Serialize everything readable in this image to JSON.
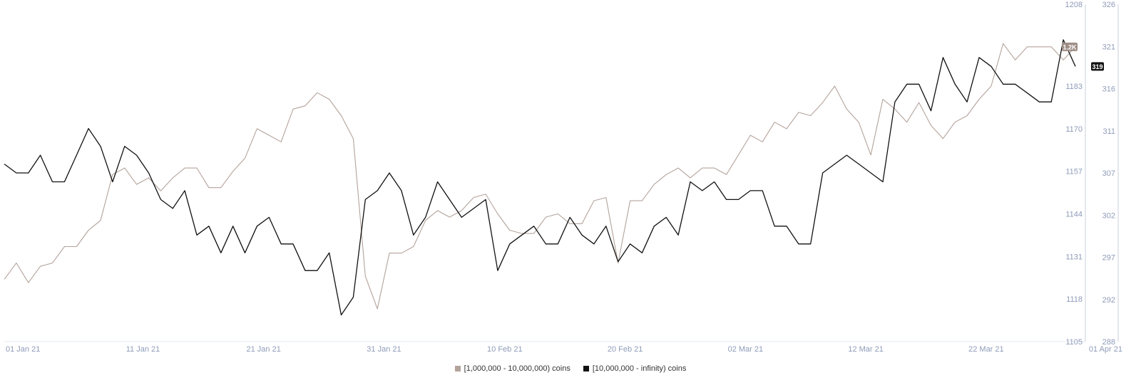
{
  "chart_data": {
    "type": "line",
    "title": "",
    "x_tick_labels": [
      "01 Jan 21",
      "11 Jan 21",
      "21 Jan 21",
      "31 Jan 21",
      "10 Feb 21",
      "20 Feb 21",
      "02 Mar 21",
      "12 Mar 21",
      "22 Mar 21",
      "01 Apr 21"
    ],
    "x_start": "2021-01-01",
    "x_end": "2021-03-31",
    "left_axis": {
      "ticks": [
        "1208",
        "1183",
        "1170",
        "1157",
        "1144",
        "1131",
        "1118",
        "1105"
      ],
      "ylim": [
        1105,
        1208
      ]
    },
    "right_axis": {
      "ticks": [
        "326",
        "321",
        "316",
        "311",
        "307",
        "302",
        "297",
        "292",
        "288"
      ],
      "ylim": [
        288,
        326
      ]
    },
    "series": [
      {
        "name": "[1,000,000 - 10,000,000) coins",
        "axis": "left",
        "color": "#b3a39b",
        "last_label": "1.2K",
        "values": [
          1124,
          1129,
          1123,
          1128,
          1129,
          1134,
          1134,
          1139,
          1142,
          1156,
          1158,
          1153,
          1155,
          1151,
          1155,
          1158,
          1158,
          1152,
          1152,
          1157,
          1161,
          1170,
          1168,
          1166,
          1176,
          1177,
          1181,
          1179,
          1174,
          1167,
          1125,
          1115,
          1132,
          1132,
          1134,
          1142,
          1145,
          1143,
          1145,
          1149,
          1150,
          1144,
          1139,
          1138,
          1138,
          1143,
          1144,
          1141,
          1141,
          1148,
          1149,
          1129,
          1148,
          1148,
          1153,
          1156,
          1158,
          1155,
          1158,
          1158,
          1156,
          1162,
          1168,
          1166,
          1172,
          1170,
          1175,
          1174,
          1178,
          1183,
          1176,
          1172,
          1162,
          1179,
          1176,
          1172,
          1178,
          1171,
          1167,
          1172,
          1174,
          1179,
          1183,
          1196,
          1191,
          1195,
          1195,
          1195,
          1191,
          1195
        ]
      },
      {
        "name": "[10,000,000 - infinity) coins",
        "axis": "right",
        "color": "#111111",
        "last_label": "319",
        "values": [
          308,
          307,
          307,
          309,
          306,
          306,
          309,
          312,
          310,
          306,
          310,
          309,
          307,
          304,
          303,
          305,
          300,
          301,
          298,
          301,
          298,
          301,
          302,
          299,
          299,
          296,
          296,
          298,
          291,
          293,
          304,
          305,
          307,
          305,
          300,
          302,
          306,
          304,
          302,
          303,
          304,
          296,
          299,
          300,
          301,
          299,
          299,
          302,
          300,
          299,
          301,
          297,
          299,
          298,
          301,
          302,
          300,
          306,
          305,
          306,
          304,
          304,
          305,
          305,
          301,
          301,
          299,
          299,
          307,
          308,
          309,
          308,
          307,
          306,
          315,
          317,
          317,
          314,
          320,
          317,
          315,
          320,
          319,
          317,
          317,
          316,
          315,
          315,
          322,
          319
        ]
      }
    ]
  }
}
